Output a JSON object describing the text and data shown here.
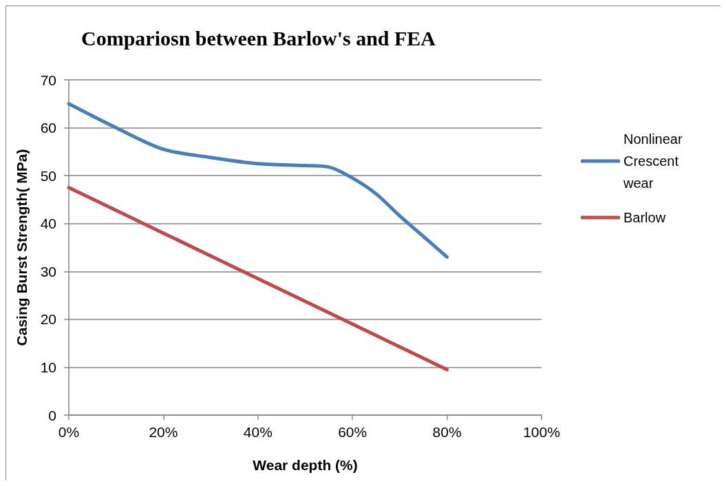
{
  "chart_data": {
    "type": "line",
    "title": "Compariosn between Barlow's and FEA",
    "xlabel": "Wear depth (%)",
    "ylabel": "Casing Burst Strength( MPa)",
    "series": [
      {
        "name": "Nonlinear Crescent wear",
        "color": "#4a7ebb",
        "x": [
          0,
          10,
          20,
          30,
          40,
          50,
          55,
          60,
          65,
          70,
          75,
          80
        ],
        "values": [
          65,
          60,
          55.5,
          53.8,
          52.5,
          52.1,
          51.8,
          49.5,
          46.2,
          41.6,
          37.3,
          33
        ]
      },
      {
        "name": "Barlow",
        "color": "#be4b48",
        "x": [
          0,
          20,
          40,
          60,
          80
        ],
        "values": [
          47.5,
          38,
          28.5,
          19,
          9.5
        ]
      }
    ],
    "xlim": [
      0,
      100
    ],
    "xticks": [
      {
        "value": 0,
        "label": "0%"
      },
      {
        "value": 20,
        "label": "20%"
      },
      {
        "value": 40,
        "label": "40%"
      },
      {
        "value": 60,
        "label": "60%"
      },
      {
        "value": 80,
        "label": "80%"
      },
      {
        "value": 100,
        "label": "100%"
      }
    ],
    "ylim": [
      0,
      70
    ],
    "yticks": [
      0,
      10,
      20,
      30,
      40,
      50,
      60,
      70
    ],
    "grid": "y",
    "legend": "right",
    "marker": "none",
    "line_style": "solid"
  }
}
